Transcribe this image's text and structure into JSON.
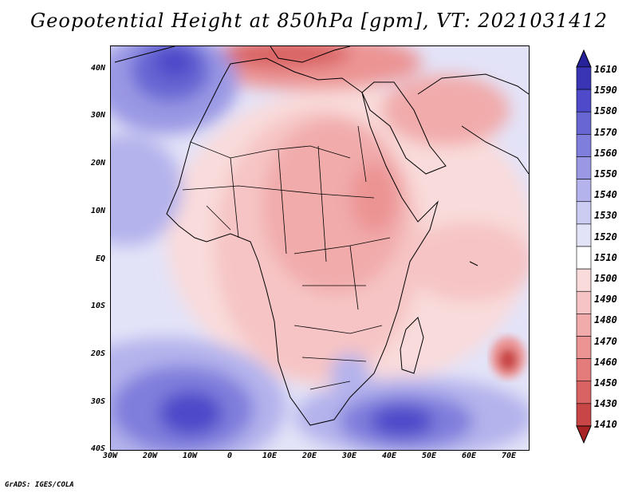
{
  "title": "Geopotential Height at 850hPa [gpm], VT: 2021031412",
  "footer": "GrADS: IGES/COLA",
  "map": {
    "lat_labels": [
      "40N",
      "30N",
      "20N",
      "10N",
      "EQ",
      "10S",
      "20S",
      "30S",
      "40S"
    ],
    "lon_labels": [
      "30W",
      "20W",
      "10W",
      "0",
      "10E",
      "20E",
      "30E",
      "40E",
      "50E",
      "60E",
      "70E"
    ],
    "extent": {
      "lon_min": -30,
      "lon_max": 73,
      "lat_min": -40,
      "lat_max": 44
    }
  },
  "colorbar": {
    "labels": [
      "1610",
      "1590",
      "1580",
      "1570",
      "1560",
      "1550",
      "1540",
      "1530",
      "1520",
      "1510",
      "1500",
      "1490",
      "1480",
      "1470",
      "1460",
      "1450",
      "1430",
      "1410"
    ],
    "colors": [
      "#27229b",
      "#3a35b5",
      "#4e4ac9",
      "#6866d3",
      "#807edc",
      "#9a98e4",
      "#b4b3ec",
      "#cccbf2",
      "#e3e3f8",
      "#ffffff",
      "#f9dbdb",
      "#f6c4c4",
      "#f1abab",
      "#ec9494",
      "#e47c7c",
      "#d96262",
      "#c94646",
      "#a82424"
    ]
  }
}
